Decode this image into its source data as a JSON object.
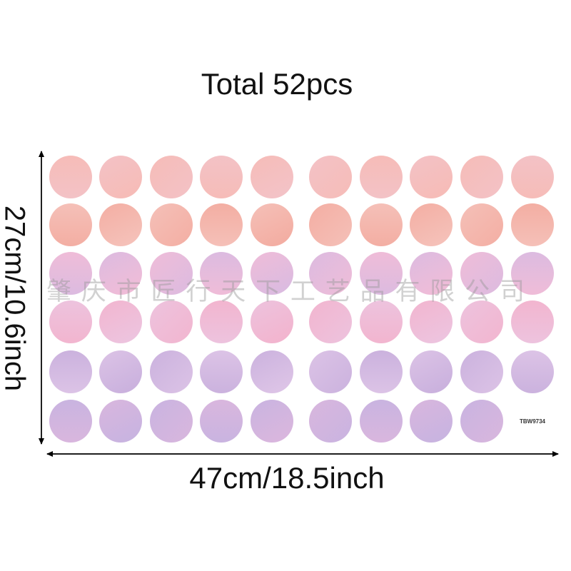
{
  "title": "Total 52pcs",
  "height_label": "27cm/10.6inch",
  "width_label": "47cm/18.5inch",
  "product_code": "TBW9734",
  "watermark": "肇庆市匠行天下工艺品有限公司"
}
